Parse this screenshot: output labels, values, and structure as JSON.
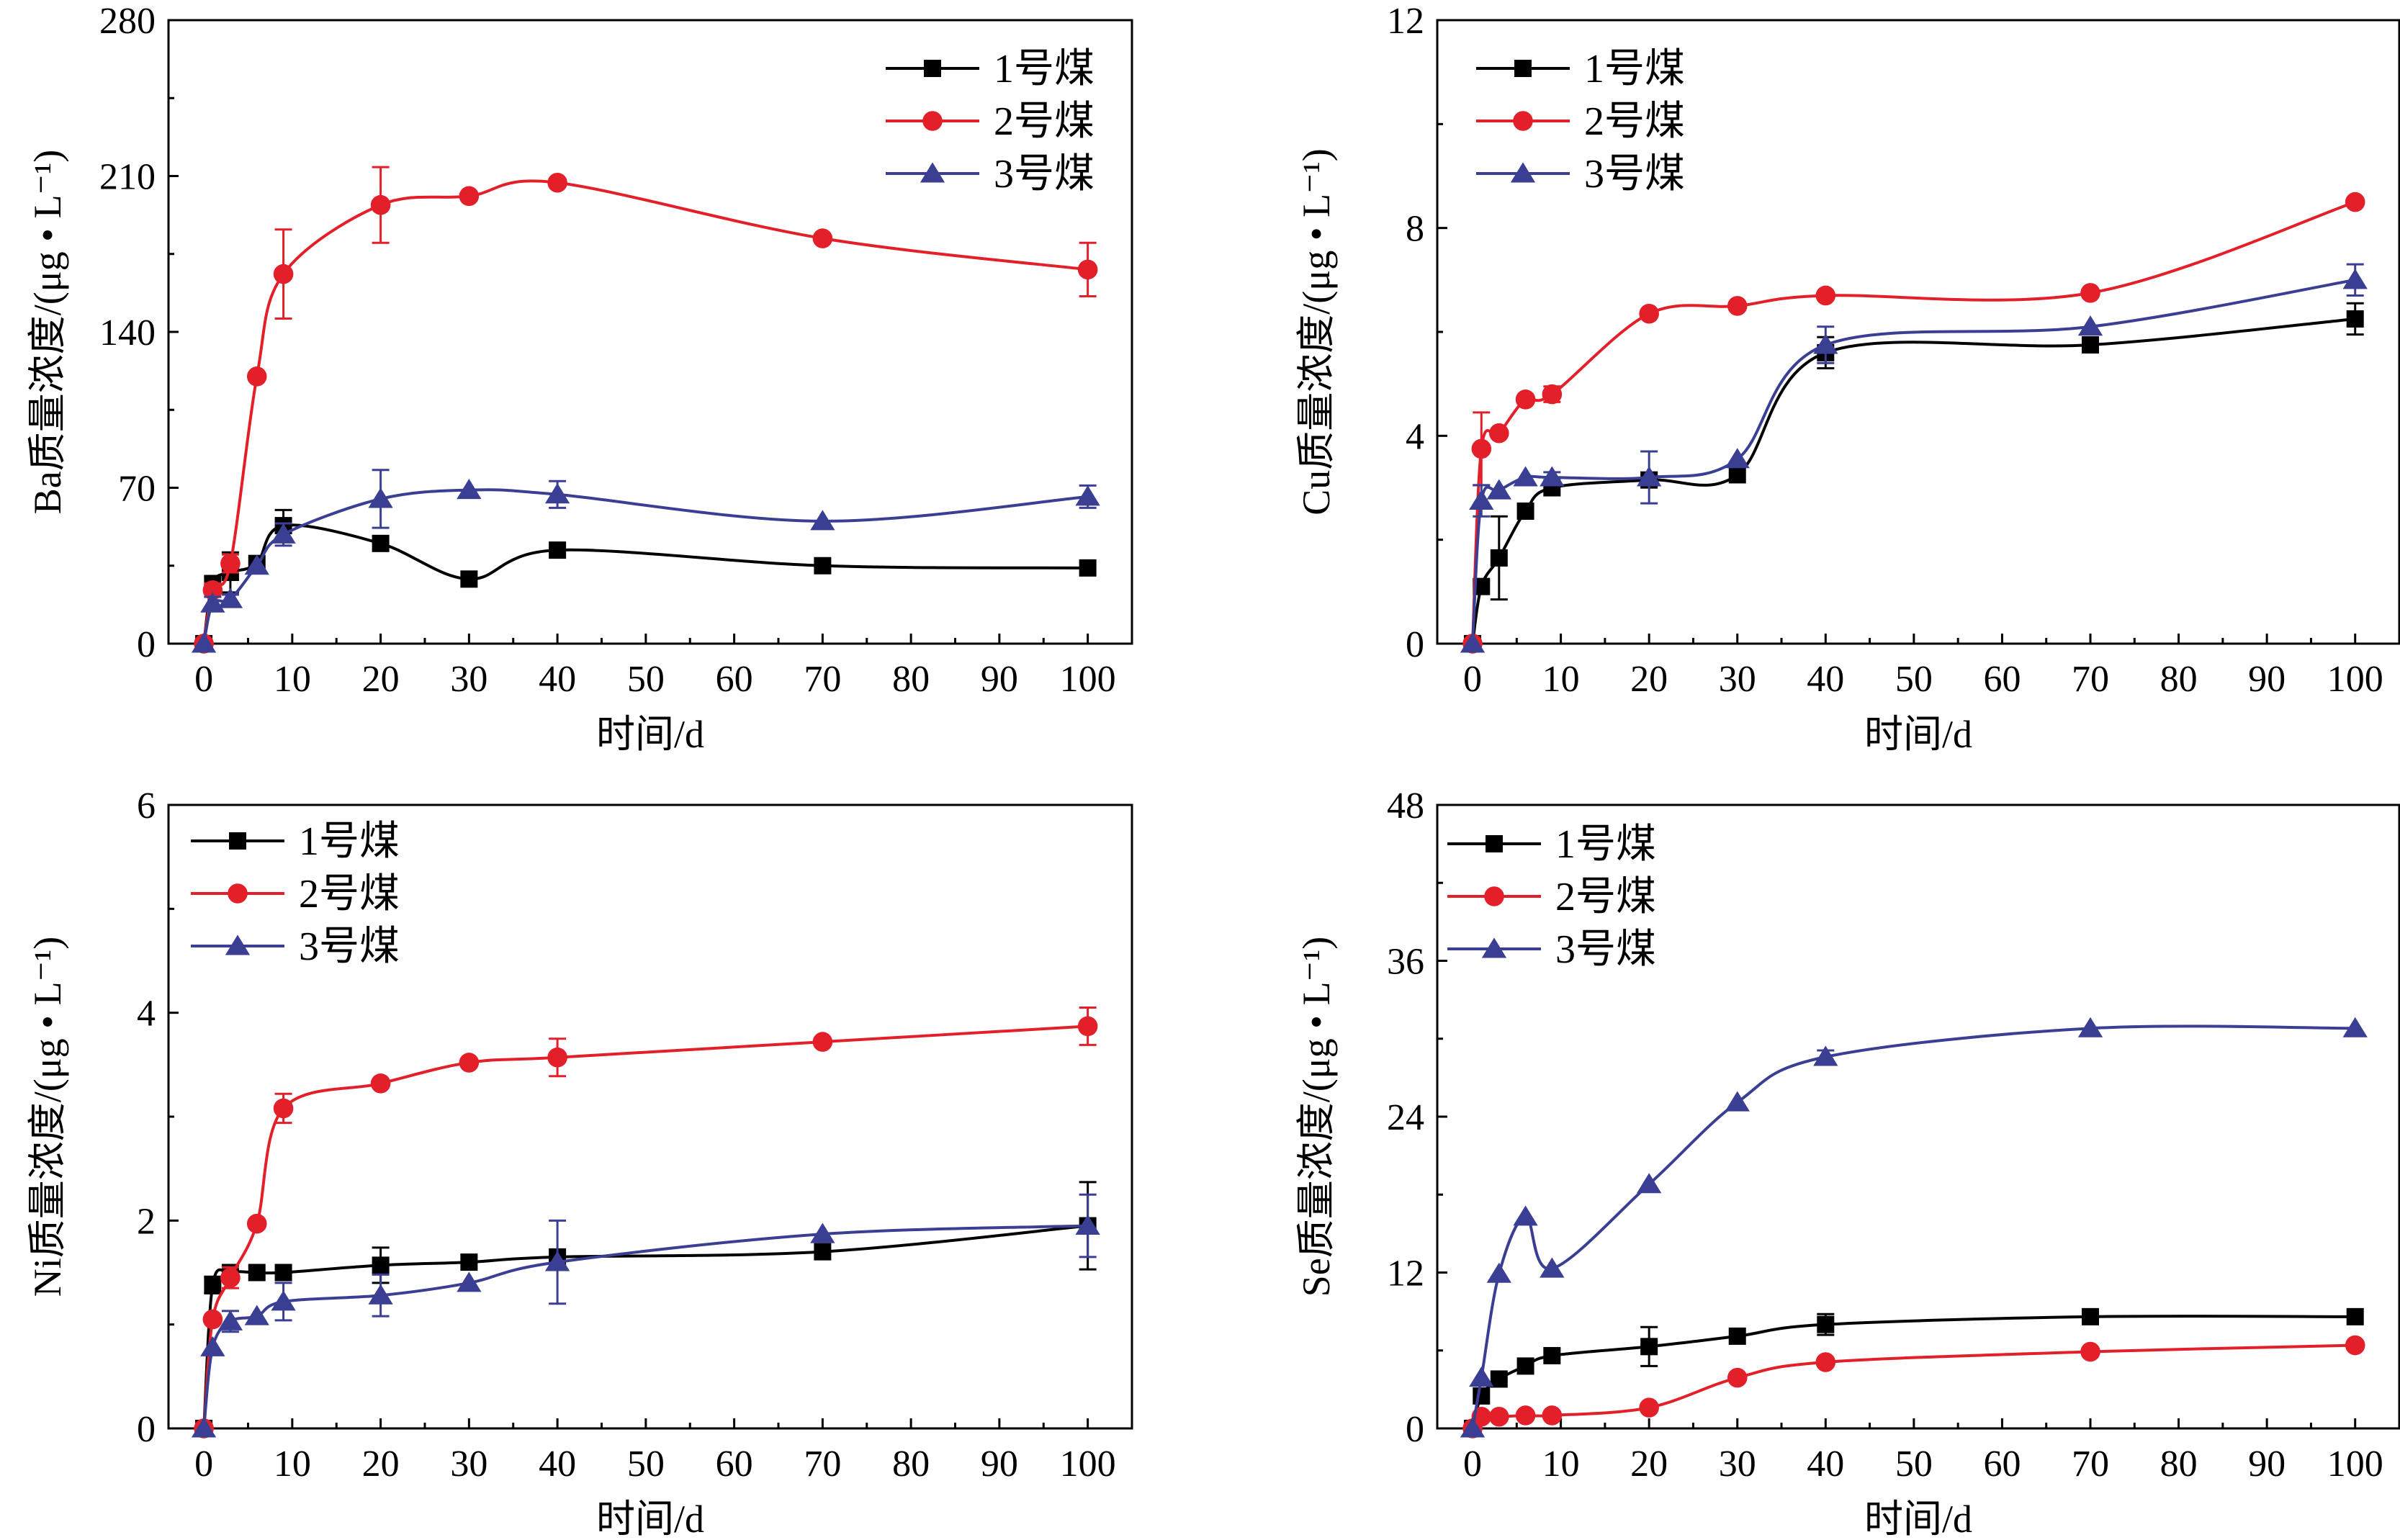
{
  "chart_data": [
    {
      "type": "line",
      "ylabel": "Ba质量浓度/(μg • L⁻¹)",
      "xlabel": "时间/d",
      "xlim": [
        -4,
        105
      ],
      "ylim": [
        0,
        280
      ],
      "xticks": [
        0,
        10,
        20,
        30,
        40,
        50,
        60,
        70,
        80,
        90,
        100
      ],
      "yticks": [
        0,
        70,
        140,
        210,
        280
      ],
      "grid": false,
      "legend_position": "top-right",
      "series": [
        {
          "name": "1号煤",
          "marker": "square",
          "color": "#000000",
          "x": [
            0,
            1,
            3,
            6,
            9,
            20,
            30,
            40,
            70,
            100
          ],
          "y": [
            0,
            27,
            32,
            36,
            53,
            45,
            29,
            42,
            35,
            34
          ],
          "err": [
            0,
            3,
            9,
            0,
            7,
            0,
            0,
            0,
            0,
            0
          ]
        },
        {
          "name": "2号煤",
          "marker": "circle",
          "color": "#e3202a",
          "x": [
            0,
            1,
            3,
            6,
            9,
            20,
            30,
            40,
            70,
            100
          ],
          "y": [
            0,
            24,
            36,
            120,
            166,
            197,
            201,
            207,
            182,
            168
          ],
          "err": [
            0,
            3,
            4,
            0,
            20,
            17,
            0,
            0,
            0,
            12
          ]
        },
        {
          "name": "3号煤",
          "marker": "triangle",
          "color": "#3b3f94",
          "x": [
            0,
            1,
            3,
            6,
            9,
            20,
            30,
            40,
            70,
            100
          ],
          "y": [
            0,
            18,
            20,
            35,
            49,
            65,
            69,
            67,
            55,
            66
          ],
          "err": [
            0,
            3,
            2,
            0,
            5,
            13,
            0,
            6,
            0,
            5
          ]
        }
      ]
    },
    {
      "type": "line",
      "ylabel": "Cu质量浓度/(μg • L⁻¹)",
      "xlabel": "时间/d",
      "xlim": [
        -4,
        105
      ],
      "ylim": [
        0,
        12
      ],
      "xticks": [
        0,
        10,
        20,
        30,
        40,
        50,
        60,
        70,
        80,
        90,
        100
      ],
      "yticks": [
        0,
        4,
        8,
        12
      ],
      "grid": false,
      "legend_position": "top-left",
      "series": [
        {
          "name": "1号煤",
          "marker": "square",
          "color": "#000000",
          "x": [
            0,
            1,
            3,
            6,
            9,
            20,
            30,
            40,
            70,
            100
          ],
          "y": [
            0,
            1.1,
            1.65,
            2.55,
            3.0,
            3.15,
            3.25,
            5.6,
            5.75,
            6.25
          ],
          "err": [
            0,
            0,
            0.8,
            0,
            0,
            0,
            0,
            0.3,
            0,
            0.3
          ]
        },
        {
          "name": "2号煤",
          "marker": "circle",
          "color": "#e3202a",
          "x": [
            0,
            1,
            3,
            6,
            9,
            20,
            30,
            40,
            70,
            100
          ],
          "y": [
            0,
            3.75,
            4.05,
            4.7,
            4.8,
            6.35,
            6.5,
            6.7,
            6.75,
            8.5
          ],
          "err": [
            0,
            0.7,
            0,
            0,
            0.15,
            0,
            0,
            0,
            0,
            0
          ]
        },
        {
          "name": "3号煤",
          "marker": "triangle",
          "color": "#3b3f94",
          "x": [
            0,
            1,
            3,
            6,
            9,
            20,
            30,
            40,
            70,
            100
          ],
          "y": [
            0,
            2.75,
            2.95,
            3.2,
            3.2,
            3.2,
            3.55,
            5.75,
            6.1,
            7.0
          ],
          "err": [
            0,
            0.3,
            0,
            0,
            0.1,
            0.5,
            0,
            0.35,
            0,
            0.3
          ]
        }
      ]
    },
    {
      "type": "line",
      "ylabel": "Ni质量浓度/(μg • L⁻¹)",
      "xlabel": "时间/d",
      "xlim": [
        -4,
        105
      ],
      "ylim": [
        0,
        6
      ],
      "xticks": [
        0,
        10,
        20,
        30,
        40,
        50,
        60,
        70,
        80,
        90,
        100
      ],
      "yticks": [
        0,
        2,
        4,
        6
      ],
      "grid": false,
      "legend_position": "top-left",
      "series": [
        {
          "name": "1号煤",
          "marker": "square",
          "color": "#000000",
          "x": [
            0,
            1,
            3,
            6,
            9,
            20,
            30,
            40,
            70,
            100
          ],
          "y": [
            0,
            1.38,
            1.5,
            1.5,
            1.5,
            1.57,
            1.6,
            1.65,
            1.7,
            1.95
          ],
          "err": [
            0,
            0.08,
            0,
            0,
            0,
            0.17,
            0,
            0,
            0,
            0.42
          ]
        },
        {
          "name": "2号煤",
          "marker": "circle",
          "color": "#e3202a",
          "x": [
            0,
            1,
            3,
            6,
            9,
            20,
            30,
            40,
            70,
            100
          ],
          "y": [
            0,
            1.05,
            1.45,
            1.97,
            3.08,
            3.32,
            3.52,
            3.57,
            3.72,
            3.87
          ],
          "err": [
            0,
            0,
            0.1,
            0,
            0.14,
            0,
            0,
            0.18,
            0,
            0.18
          ]
        },
        {
          "name": "3号煤",
          "marker": "triangle",
          "color": "#3b3f94",
          "x": [
            0,
            1,
            3,
            6,
            9,
            20,
            30,
            40,
            70,
            100
          ],
          "y": [
            0,
            0.78,
            1.03,
            1.08,
            1.22,
            1.28,
            1.4,
            1.6,
            1.87,
            1.95
          ],
          "err": [
            0,
            0,
            0.1,
            0,
            0.18,
            0.2,
            0,
            0.4,
            0,
            0.3
          ]
        }
      ]
    },
    {
      "type": "line",
      "ylabel": "Se质量浓度/(μg • L⁻¹)",
      "xlabel": "时间/d",
      "xlim": [
        -4,
        105
      ],
      "ylim": [
        0,
        48
      ],
      "xticks": [
        0,
        10,
        20,
        30,
        40,
        50,
        60,
        70,
        80,
        90,
        100
      ],
      "yticks": [
        0,
        12,
        24,
        36,
        48
      ],
      "grid": false,
      "legend_position": "top-left",
      "series": [
        {
          "name": "1号煤",
          "marker": "square",
          "color": "#000000",
          "x": [
            0,
            1,
            3,
            6,
            9,
            20,
            30,
            40,
            70,
            100
          ],
          "y": [
            0,
            2.5,
            3.8,
            4.8,
            5.6,
            6.3,
            7.1,
            8.0,
            8.6,
            8.6
          ],
          "err": [
            0,
            0,
            0,
            0,
            0,
            1.5,
            0,
            0.8,
            0,
            0
          ]
        },
        {
          "name": "2号煤",
          "marker": "circle",
          "color": "#e3202a",
          "x": [
            0,
            1,
            3,
            6,
            9,
            20,
            30,
            40,
            70,
            100
          ],
          "y": [
            0,
            0.9,
            0.9,
            1.0,
            1.0,
            1.6,
            3.9,
            5.1,
            5.9,
            6.4
          ],
          "err": [
            0,
            0,
            0,
            0,
            0,
            0,
            0,
            0,
            0,
            0
          ]
        },
        {
          "name": "3号煤",
          "marker": "triangle",
          "color": "#3b3f94",
          "x": [
            0,
            1,
            3,
            6,
            9,
            20,
            30,
            40,
            70,
            100
          ],
          "y": [
            0,
            3.9,
            11.9,
            16.3,
            12.3,
            18.8,
            25.1,
            28.6,
            30.8,
            30.8
          ],
          "err": [
            0,
            0,
            0,
            0,
            0,
            0,
            0,
            0.5,
            0,
            0
          ]
        }
      ]
    }
  ]
}
